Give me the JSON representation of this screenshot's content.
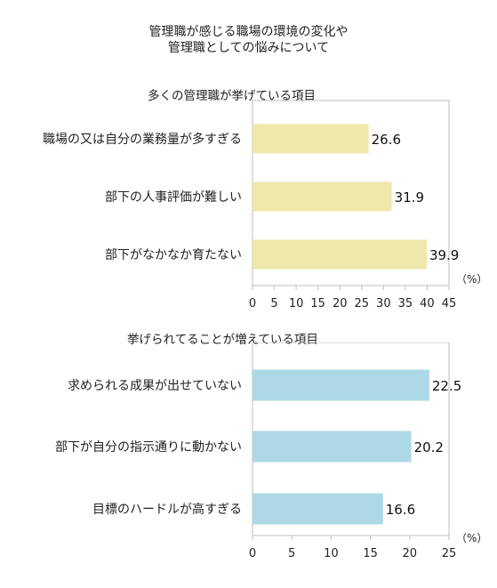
{
  "title_lines": [
    "管理職が感じる職場の環境の変化や",
    "管理職としての悩みについて"
  ],
  "chart_data": [
    {
      "type": "bar",
      "orientation": "horizontal",
      "title": "多くの管理職が挙げている項目",
      "categories": [
        "職場の又は自分の業務量が多すぎる",
        "部下の人事評価が難しい",
        "部下がなかなか育たない"
      ],
      "values": [
        26.6,
        31.9,
        39.9
      ],
      "xlim": [
        0,
        45
      ],
      "xticks": [
        0,
        5,
        10,
        15,
        20,
        25,
        30,
        35,
        40,
        45
      ],
      "unit": "（%）",
      "bar_color": "#EEE8AA",
      "grid": false,
      "data_labels": true
    },
    {
      "type": "bar",
      "orientation": "horizontal",
      "title": "挙げられてることが増えている項目",
      "categories": [
        "求められる成果が出せていない",
        "部下が自分の指示通りに動かない",
        "目標のハードルが高すぎる"
      ],
      "values": [
        22.5,
        20.2,
        16.6
      ],
      "xlim": [
        0,
        25
      ],
      "xticks": [
        0,
        5,
        10,
        15,
        20,
        25
      ],
      "unit": "（%）",
      "bar_color": "#ADD8E6",
      "grid": false,
      "data_labels": true
    }
  ]
}
